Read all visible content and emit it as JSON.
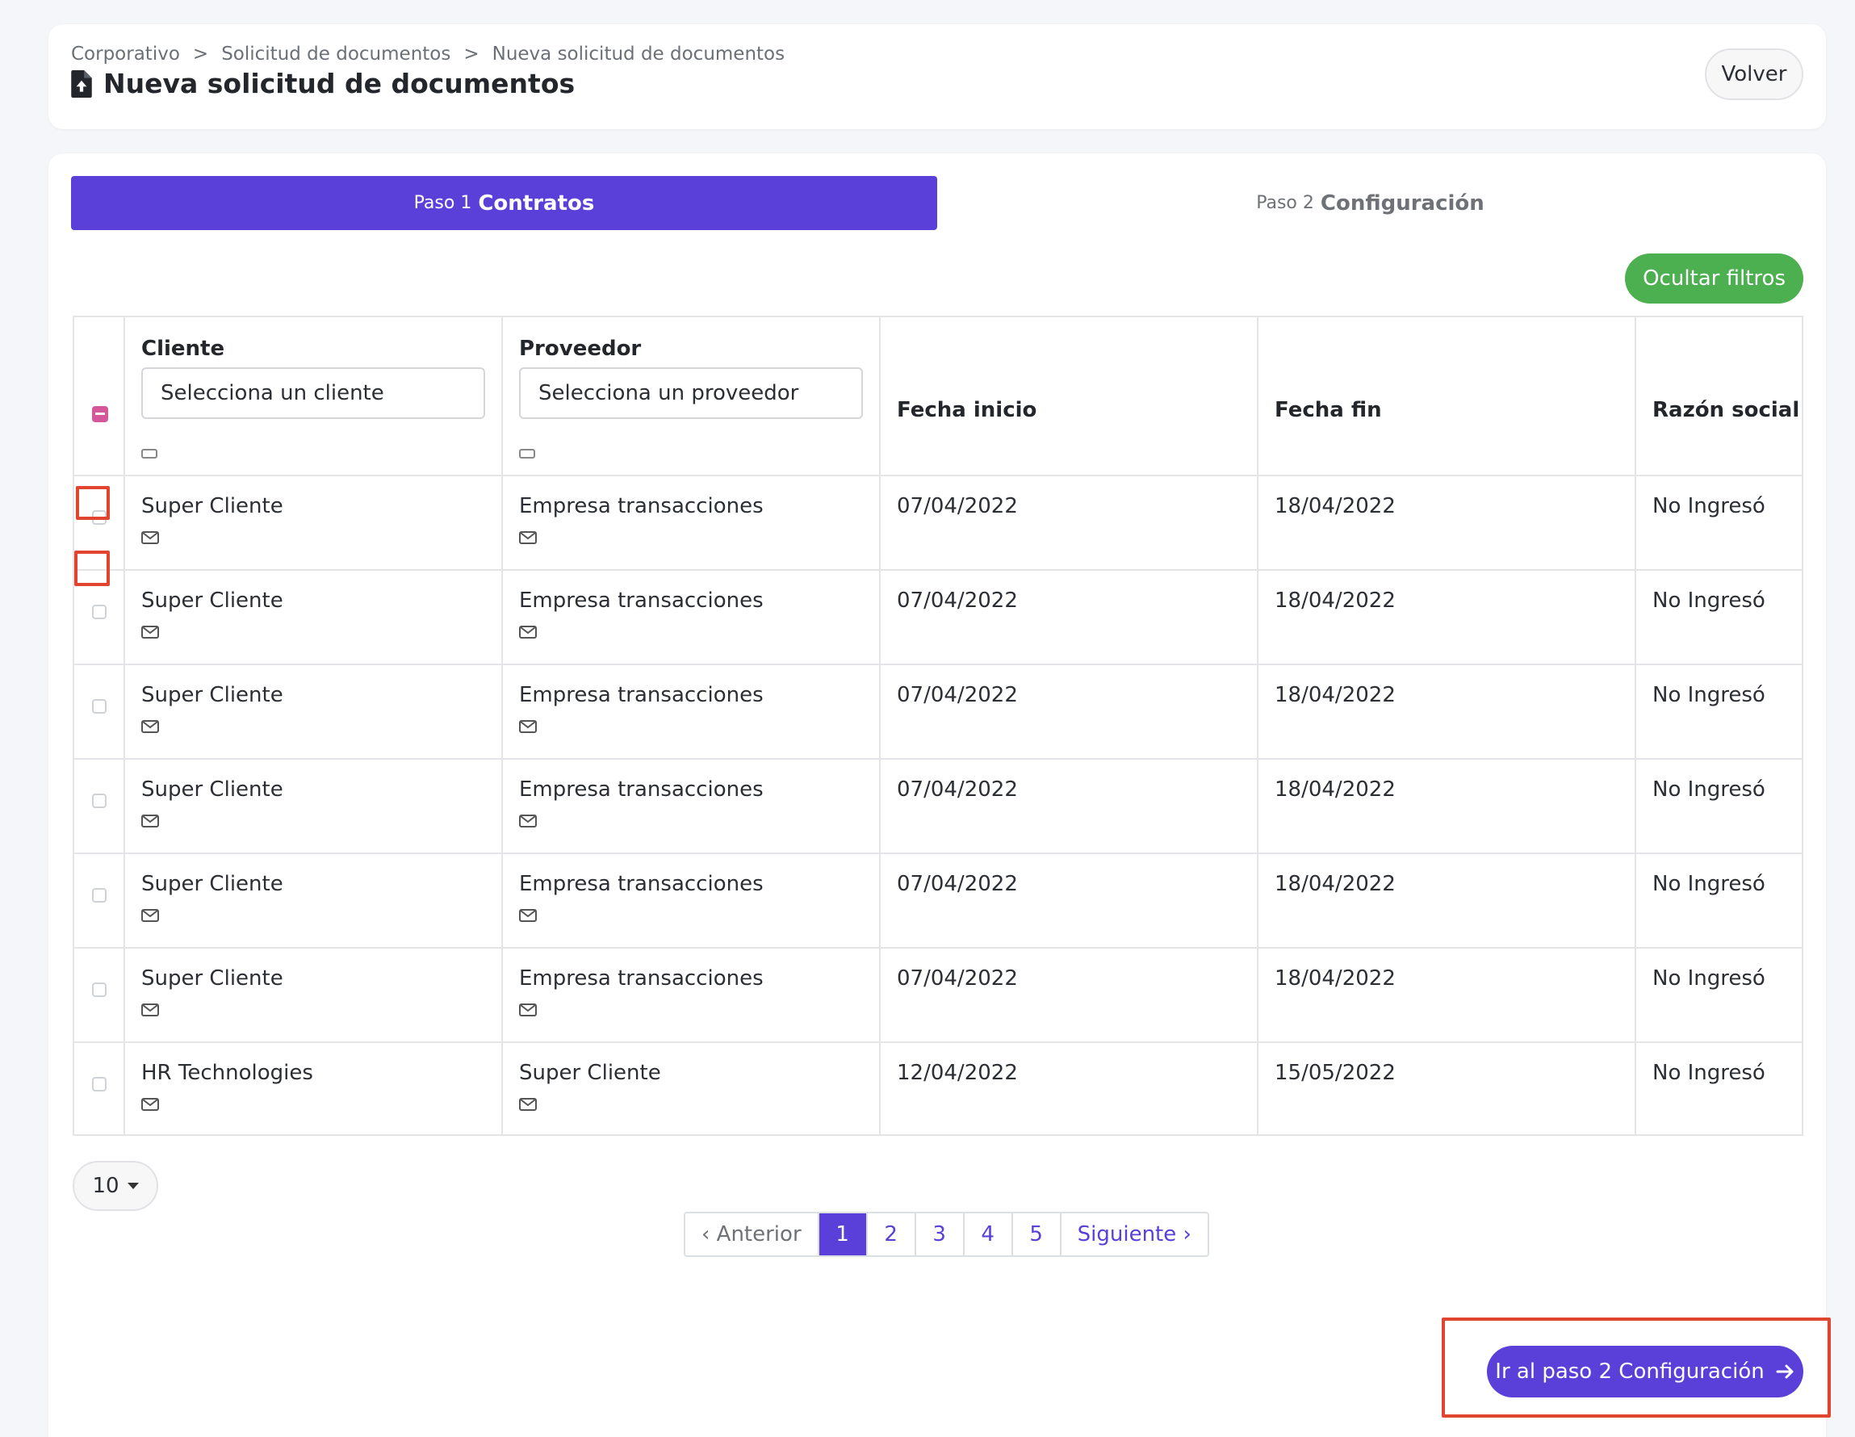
{
  "breadcrumb": [
    "Corporativo",
    "Solicitud de documentos",
    "Nueva solicitud de documentos"
  ],
  "breadcrumb_separator": ">",
  "page_title": "Nueva solicitud de documentos",
  "back_label": "Volver",
  "steps": [
    {
      "prefix": "Paso 1",
      "name": "Contratos",
      "active": true
    },
    {
      "prefix": "Paso 2",
      "name": "Configuración",
      "active": false
    }
  ],
  "filters_label": "Ocultar filtros",
  "table": {
    "headers": {
      "cliente": "Cliente",
      "proveedor": "Proveedor",
      "fecha_inicio": "Fecha inicio",
      "fecha_fin": "Fecha fin",
      "razon_social": "Razón social"
    },
    "placeholders": {
      "cliente": "Selecciona un cliente",
      "proveedor": "Selecciona un proveedor"
    },
    "rows": [
      {
        "cliente": "Super Cliente",
        "proveedor": "Empresa transacciones",
        "inicio": "07/04/2022",
        "fin": "18/04/2022",
        "razon": "No Ingresó"
      },
      {
        "cliente": "Super Cliente",
        "proveedor": "Empresa transacciones",
        "inicio": "07/04/2022",
        "fin": "18/04/2022",
        "razon": "No Ingresó"
      },
      {
        "cliente": "Super Cliente",
        "proveedor": "Empresa transacciones",
        "inicio": "07/04/2022",
        "fin": "18/04/2022",
        "razon": "No Ingresó"
      },
      {
        "cliente": "Super Cliente",
        "proveedor": "Empresa transacciones",
        "inicio": "07/04/2022",
        "fin": "18/04/2022",
        "razon": "No Ingresó"
      },
      {
        "cliente": "Super Cliente",
        "proveedor": "Empresa transacciones",
        "inicio": "07/04/2022",
        "fin": "18/04/2022",
        "razon": "No Ingresó"
      },
      {
        "cliente": "Super Cliente",
        "proveedor": "Empresa transacciones",
        "inicio": "07/04/2022",
        "fin": "18/04/2022",
        "razon": "No Ingresó"
      },
      {
        "cliente": "HR Technologies",
        "proveedor": "Super Cliente",
        "inicio": "12/04/2022",
        "fin": "15/05/2022",
        "razon": "No Ingresó"
      }
    ]
  },
  "page_size": "10",
  "pagination": {
    "prev": "‹ Anterior",
    "pages": [
      "1",
      "2",
      "3",
      "4",
      "5"
    ],
    "current": "1",
    "next": "Siguiente ›"
  },
  "next_step_label": "Ir al paso 2 Configuración",
  "colors": {
    "accent": "#5a3fd9",
    "success": "#4caf50",
    "highlight": "#e2452f",
    "indeterminate": "#d4579a"
  },
  "icons": [
    "file-upload-icon",
    "mail-icon",
    "caret-down-icon",
    "arrow-right-icon"
  ]
}
